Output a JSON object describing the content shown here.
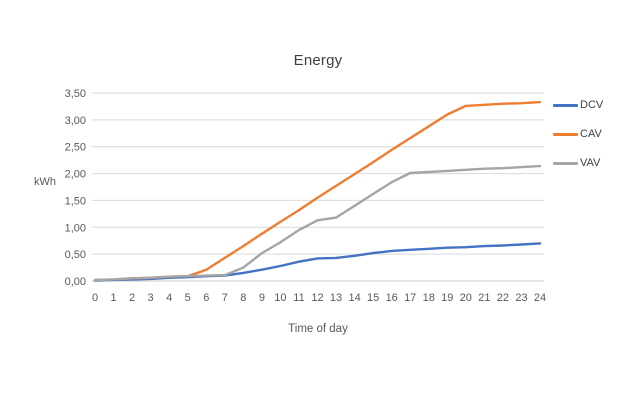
{
  "chart_data": {
    "type": "line",
    "title": "Energy",
    "ylabel": "kWh",
    "xlabel": "Time of day",
    "xlim": [
      0,
      24
    ],
    "ylim": [
      0,
      3.5
    ],
    "grid": "horizontal",
    "legend_position": "right",
    "decimal_separator": ",",
    "x": [
      0,
      1,
      2,
      3,
      4,
      5,
      6,
      7,
      8,
      9,
      10,
      11,
      12,
      13,
      14,
      15,
      16,
      17,
      18,
      19,
      20,
      21,
      22,
      23,
      24
    ],
    "x_tick_labels": [
      "0",
      "1",
      "2",
      "3",
      "4",
      "5",
      "6",
      "7",
      "8",
      "9",
      "10",
      "11",
      "12",
      "13",
      "14",
      "15",
      "16",
      "17",
      "18",
      "19",
      "20",
      "21",
      "22",
      "23",
      "24"
    ],
    "y_ticks": [
      0,
      0.5,
      1,
      1.5,
      2,
      2.5,
      3,
      3.5
    ],
    "y_tick_labels": [
      "0,00",
      "0,50",
      "1,00",
      "1,50",
      "2,00",
      "2,50",
      "3,00",
      "3,50"
    ],
    "series": [
      {
        "name": "DCV",
        "color": "#4472C4",
        "values": [
          0.01,
          0.02,
          0.03,
          0.04,
          0.06,
          0.07,
          0.09,
          0.1,
          0.15,
          0.21,
          0.28,
          0.36,
          0.42,
          0.43,
          0.47,
          0.52,
          0.56,
          0.58,
          0.6,
          0.62,
          0.63,
          0.65,
          0.66,
          0.68,
          0.7
        ]
      },
      {
        "name": "CAV",
        "color": "#ED7D31",
        "values": [
          0.02,
          0.03,
          0.05,
          0.06,
          0.08,
          0.09,
          0.21,
          0.43,
          0.65,
          0.88,
          1.1,
          1.32,
          1.55,
          1.77,
          1.99,
          2.21,
          2.44,
          2.66,
          2.88,
          3.1,
          3.26,
          3.28,
          3.3,
          3.31,
          3.33
        ]
      },
      {
        "name": "VAV",
        "color": "#A5A5A5",
        "values": [
          0.02,
          0.03,
          0.05,
          0.06,
          0.08,
          0.09,
          0.1,
          0.11,
          0.25,
          0.52,
          0.72,
          0.95,
          1.13,
          1.18,
          1.4,
          1.62,
          1.84,
          2.01,
          2.03,
          2.05,
          2.07,
          2.09,
          2.1,
          2.12,
          2.14
        ]
      }
    ]
  },
  "colors": {
    "background": "#ffffff",
    "gridline": "#d9d9d9",
    "baseline": "#c9c9c9",
    "tick_text": "#595959",
    "title_text": "#404040"
  }
}
